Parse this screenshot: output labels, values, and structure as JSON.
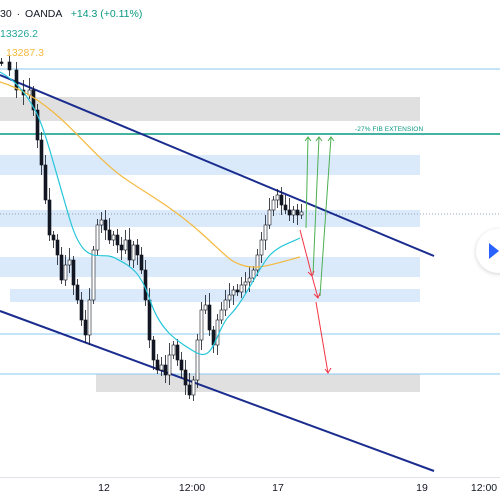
{
  "header": {
    "symbol_fragment": "30",
    "separator": "·",
    "broker": "OANDA",
    "change": "+14.3 (+0.11%)"
  },
  "moving_averages": [
    {
      "label": "13326.2",
      "color": "#26a69a"
    },
    {
      "label": "13287.3",
      "color": "#f4b93e"
    }
  ],
  "annotations": {
    "fib_label": "-27% FIB EXTENSION"
  },
  "x_axis": {
    "ticks": [
      "12",
      "12:00",
      "17",
      "19",
      "12:00"
    ]
  },
  "colors": {
    "channel": "#1a2d8f",
    "fib_line": "#089981",
    "support_zone": "#dbeafb",
    "gray_zone": "#e0e0e0",
    "candle": "#131722",
    "ma_fast": "#26c6da",
    "ma_slow": "#f4b93e",
    "arrow_up": "#4caf50",
    "arrow_down": "#f23645"
  },
  "icons": {
    "replay": "play-icon"
  }
}
